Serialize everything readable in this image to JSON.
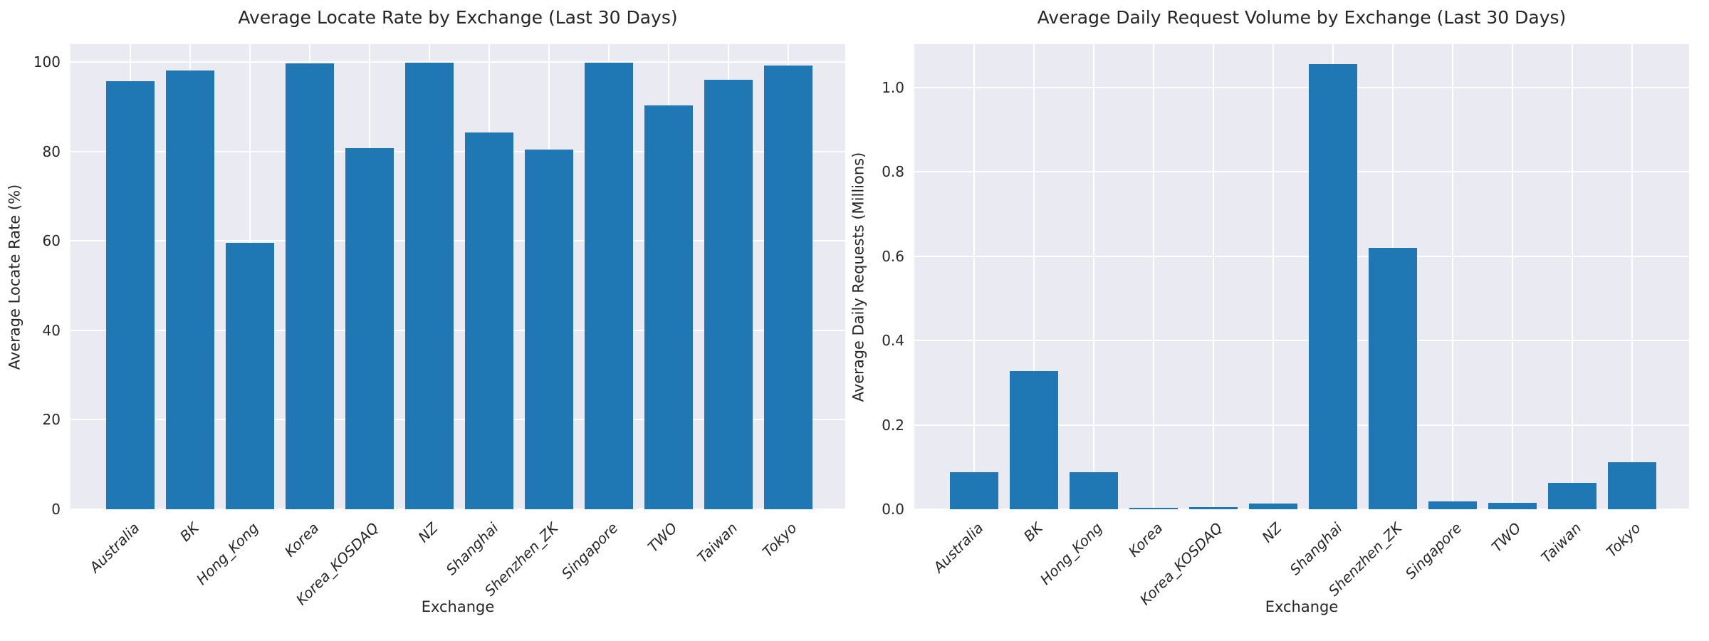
{
  "figure": {
    "background_color": "#ffffff",
    "axes_background_color": "#eaeaf2",
    "grid_color": "#ffffff",
    "bar_color": "#1f77b4",
    "text_color": "#262626"
  },
  "chart_data": [
    {
      "type": "bar",
      "title": "Average Locate Rate by Exchange (Last 30 Days)",
      "xlabel": "Exchange",
      "ylabel": "Average Locate Rate (%)",
      "categories": [
        "Australia",
        "BK",
        "Hong_Kong",
        "Korea",
        "Korea_KOSDAQ",
        "NZ",
        "Shanghai",
        "Shenzhen_ZK",
        "Singapore",
        "TWO",
        "Taiwan",
        "Tokyo"
      ],
      "values": [
        95.7,
        98.1,
        59.5,
        99.7,
        80.8,
        99.9,
        84.3,
        80.5,
        99.9,
        90.3,
        96.1,
        99.3
      ],
      "yticks": [
        0,
        20,
        40,
        60,
        80,
        100
      ],
      "ytick_labels": [
        "0",
        "20",
        "40",
        "60",
        "80",
        "100"
      ],
      "ylim": [
        0,
        104
      ],
      "grid": true,
      "legend": null
    },
    {
      "type": "bar",
      "title": "Average Daily Request Volume by Exchange (Last 30 Days)",
      "xlabel": "Exchange",
      "ylabel": "Average Daily Requests (Millions)",
      "categories": [
        "Australia",
        "BK",
        "Hong_Kong",
        "Korea",
        "Korea_KOSDAQ",
        "NZ",
        "Shanghai",
        "Shenzhen_ZK",
        "Singapore",
        "TWO",
        "Taiwan",
        "Tokyo"
      ],
      "values": [
        0.088,
        0.327,
        0.087,
        0.003,
        0.005,
        0.014,
        1.055,
        0.62,
        0.019,
        0.016,
        0.063,
        0.111
      ],
      "yticks": [
        0.0,
        0.2,
        0.4,
        0.6,
        0.8,
        1.0
      ],
      "ytick_labels": [
        "0.0",
        "0.2",
        "0.4",
        "0.6",
        "0.8",
        "1.0"
      ],
      "ylim": [
        0,
        1.103
      ],
      "grid": true,
      "legend": null
    }
  ]
}
